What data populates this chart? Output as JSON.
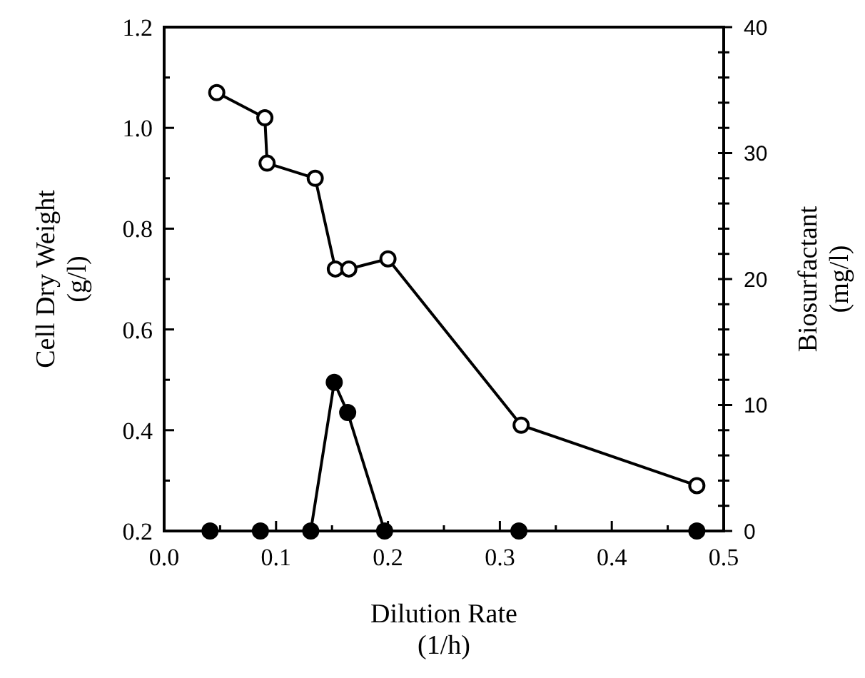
{
  "chart_data": {
    "type": "line",
    "xlabel": "Dilution Rate\n(1/h)",
    "ylabel": "Cell Dry Weight\n(g/l)",
    "y2label": "Biosurfactant\n(mg/l)",
    "xlim": [
      0.0,
      0.5
    ],
    "xticks": [
      {
        "value": 0.0,
        "label": "0.0"
      },
      {
        "value": 0.05,
        "label": null
      },
      {
        "value": 0.1,
        "label": "0.1"
      },
      {
        "value": 0.15,
        "label": null
      },
      {
        "value": 0.2,
        "label": "0.2"
      },
      {
        "value": 0.25,
        "label": null
      },
      {
        "value": 0.3,
        "label": "0.3"
      },
      {
        "value": 0.35,
        "label": null
      },
      {
        "value": 0.4,
        "label": "0.4"
      },
      {
        "value": 0.45,
        "label": null
      },
      {
        "value": 0.5,
        "label": "0.5"
      }
    ],
    "ylim": [
      0.2,
      1.2
    ],
    "yticks": [
      0.2,
      {
        "value": 0.3,
        "label": null
      },
      0.4,
      {
        "value": 0.5,
        "label": null
      },
      0.6,
      {
        "value": 0.7,
        "label": null
      },
      0.8,
      {
        "value": 0.9,
        "label": null
      },
      {
        "value": 1.0,
        "label": "1.0"
      },
      {
        "value": 1.1,
        "label": null
      },
      1.2
    ],
    "y2lim": [
      0,
      40
    ],
    "y2ticks": [
      0,
      {
        "value": 2,
        "label": null
      },
      {
        "value": 4,
        "label": null
      },
      {
        "value": 6,
        "label": null
      },
      {
        "value": 8,
        "label": null
      },
      10,
      {
        "value": 12,
        "label": null
      },
      {
        "value": 14,
        "label": null
      },
      {
        "value": 16,
        "label": null
      },
      {
        "value": 18,
        "label": null
      },
      20,
      {
        "value": 22,
        "label": null
      },
      {
        "value": 24,
        "label": null
      },
      {
        "value": 26,
        "label": null
      },
      {
        "value": 28,
        "label": null
      },
      30,
      {
        "value": 32,
        "label": null
      },
      {
        "value": 34,
        "label": null
      },
      {
        "value": 36,
        "label": null
      },
      {
        "value": 38,
        "label": null
      },
      40
    ],
    "marker": "circle",
    "series": [
      {
        "color": "#000000",
        "x": [
          0.047,
          0.09,
          0.092,
          0.135,
          0.153,
          0.165,
          0.2,
          0.319,
          0.476
        ],
        "values": [
          1.07,
          1.02,
          0.93,
          0.9,
          0.72,
          0.72,
          0.74,
          0.41,
          0.29
        ]
      },
      {
        "color": "#000000",
        "axis": "y2",
        "x": [
          0.041,
          0.086,
          0.131,
          0.152,
          0.164,
          0.197,
          0.317,
          0.476
        ],
        "values": [
          0,
          0,
          0,
          11.8,
          9.4,
          0,
          0,
          0
        ]
      }
    ]
  }
}
